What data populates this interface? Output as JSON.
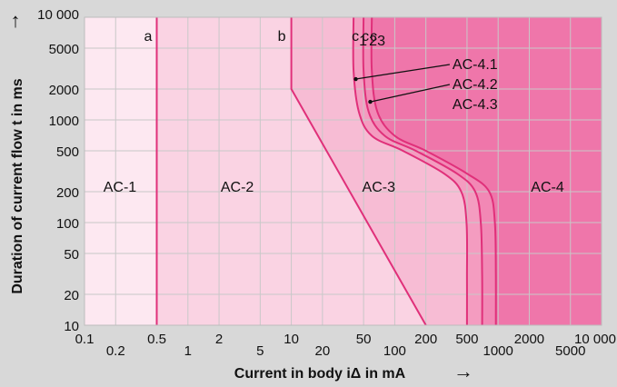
{
  "colors": {
    "background": "#d8d8d8",
    "zone_ac1": "#fde8f1",
    "zone_ac2": "#fad3e3",
    "zone_ac3": "#f7bcd4",
    "zone_ac41": "#f49cc0",
    "zone_ac42": "#f288b5",
    "zone_ac43": "#ef76aa",
    "curve": "#e0307a",
    "grid": "#c8c8c8",
    "text": "#111111"
  },
  "chart_data": {
    "type": "area",
    "xscale": "log",
    "yscale": "log",
    "xlim": [
      0.1,
      10000
    ],
    "ylim": [
      10,
      10000
    ],
    "grid": true,
    "xlabel": "Current in body iΔ in mA",
    "ylabel": "Duration of current flow t in ms",
    "x_ticks_upper": [
      "0.1",
      "0.5",
      "2",
      "10",
      "50",
      "200",
      "500",
      "2000",
      "10 000"
    ],
    "x_ticks_lower": [
      "0.2",
      "1",
      "5",
      "20",
      "100",
      "1000",
      "5000"
    ],
    "y_ticks": [
      "10",
      "20",
      "50",
      "100",
      "200",
      "500",
      "1000",
      "2000",
      "5000",
      "10 000"
    ],
    "x_tick_values_upper": [
      0.1,
      0.5,
      2,
      10,
      50,
      200,
      500,
      2000,
      10000
    ],
    "x_tick_values_lower": [
      0.2,
      1,
      5,
      20,
      100,
      1000,
      5000
    ],
    "y_tick_values": [
      10,
      20,
      50,
      100,
      200,
      500,
      1000,
      2000,
      5000,
      10000
    ],
    "boundaries": [
      {
        "label": "a",
        "points": [
          [
            0.5,
            10
          ],
          [
            0.5,
            10000
          ]
        ]
      },
      {
        "label": "b",
        "points": [
          [
            10,
            10000
          ],
          [
            10,
            2000
          ],
          [
            200,
            10
          ]
        ]
      },
      {
        "label": "c1",
        "points": [
          [
            40,
            10000
          ],
          [
            40,
            3000
          ],
          [
            45,
            1200
          ],
          [
            60,
            700
          ],
          [
            120,
            500
          ],
          [
            300,
            300
          ],
          [
            440,
            200
          ],
          [
            495,
            100
          ],
          [
            500,
            30
          ],
          [
            500,
            10
          ]
        ]
      },
      {
        "label": "c2",
        "points": [
          [
            50,
            10000
          ],
          [
            50,
            3000
          ],
          [
            56,
            1200
          ],
          [
            80,
            700
          ],
          [
            160,
            500
          ],
          [
            400,
            300
          ],
          [
            600,
            200
          ],
          [
            680,
            100
          ],
          [
            700,
            30
          ],
          [
            700,
            10
          ]
        ]
      },
      {
        "label": "c3",
        "points": [
          [
            60,
            10000
          ],
          [
            60,
            3000
          ],
          [
            68,
            1200
          ],
          [
            100,
            700
          ],
          [
            200,
            500
          ],
          [
            500,
            300
          ],
          [
            820,
            200
          ],
          [
            930,
            100
          ],
          [
            950,
            30
          ],
          [
            950,
            10
          ]
        ]
      }
    ],
    "zones": [
      {
        "label": "AC-1",
        "label_at": [
          0.22,
          200
        ]
      },
      {
        "label": "AC-2",
        "label_at": [
          3,
          200
        ]
      },
      {
        "label": "AC-3",
        "label_at": [
          70,
          200
        ]
      },
      {
        "label": "AC-4",
        "label_at": [
          3000,
          200
        ]
      }
    ],
    "annotations": [
      {
        "label": "AC-4.1",
        "point": [
          42,
          2500
        ],
        "text_at": [
          400,
          3300
        ]
      },
      {
        "label": "AC-4.2",
        "point": [
          58,
          1500
        ],
        "text_at": [
          400,
          2000
        ]
      },
      {
        "label": "AC-4.3"
      }
    ],
    "curve_labels": {
      "a": "a",
      "b": "b",
      "c1": {
        "main": "c",
        "sub": "1"
      },
      "c2": {
        "main": "c",
        "sub": "2"
      },
      "c3": {
        "main": "c",
        "sub": "3"
      }
    }
  },
  "arrows": {
    "y_axis_arrow": "↑",
    "x_axis_arrow": "→"
  }
}
